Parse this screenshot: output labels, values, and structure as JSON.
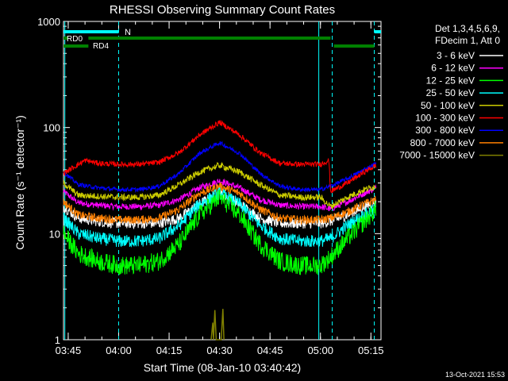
{
  "chart_data": {
    "type": "line",
    "title": "RHESSI Observing Summary Count Rates",
    "xlabel": "Start Time (08-Jan-10 03:40:42)",
    "ylabel": "Count Rate (s⁻¹ detector⁻¹)",
    "yscale": "log",
    "ylim": [
      1,
      1000
    ],
    "y_ticks": [
      {
        "value": 1,
        "label": "1"
      },
      {
        "value": 10,
        "label": "10"
      },
      {
        "value": 100,
        "label": "100"
      },
      {
        "value": 1000,
        "label": "1000"
      }
    ],
    "x_range_minutes": [
      3.6,
      98.0
    ],
    "x_ticks": [
      {
        "t": 5,
        "label": "03:45"
      },
      {
        "t": 20,
        "label": "04:00"
      },
      {
        "t": 35,
        "label": "04:15"
      },
      {
        "t": 50,
        "label": "04:30"
      },
      {
        "t": 65,
        "label": "04:45"
      },
      {
        "t": 80,
        "label": "05:00"
      },
      {
        "t": 95,
        "label": "05:15"
      }
    ],
    "legend_header": [
      "Det 1,3,4,5,6,9,",
      "FDecim 1, Att 0"
    ],
    "legend_position": "right",
    "series": [
      {
        "name": "3 - 6 keV",
        "color": "#ffffff",
        "points": [
          [
            3.6,
            18
          ],
          [
            8,
            14
          ],
          [
            14,
            13
          ],
          [
            20,
            12.5
          ],
          [
            26,
            12.5
          ],
          [
            32,
            12.5
          ],
          [
            38,
            14
          ],
          [
            44,
            19
          ],
          [
            50,
            24
          ],
          [
            56,
            19
          ],
          [
            62,
            14
          ],
          [
            68,
            12.5
          ],
          [
            74,
            12.5
          ],
          [
            80,
            12.5
          ],
          [
            83,
            13
          ],
          [
            88,
            15
          ],
          [
            93,
            18
          ],
          [
            96.5,
            20
          ]
        ]
      },
      {
        "name": "6 - 12 keV",
        "color": "#ff00ff",
        "points": [
          [
            3.6,
            25
          ],
          [
            8,
            19.5
          ],
          [
            14,
            18.5
          ],
          [
            20,
            18
          ],
          [
            26,
            18
          ],
          [
            32,
            18.5
          ],
          [
            38,
            21
          ],
          [
            44,
            27
          ],
          [
            50,
            31.5
          ],
          [
            56,
            27
          ],
          [
            62,
            21
          ],
          [
            68,
            18.5
          ],
          [
            74,
            18
          ],
          [
            80,
            18
          ],
          [
            83,
            17
          ],
          [
            88,
            20
          ],
          [
            93,
            24
          ],
          [
            96.5,
            27
          ]
        ]
      },
      {
        "name": "12 - 25 keV",
        "color": "#00ff00",
        "points": [
          [
            3.6,
            10
          ],
          [
            8,
            6.5
          ],
          [
            14,
            5.5
          ],
          [
            20,
            5
          ],
          [
            26,
            5
          ],
          [
            32,
            5.5
          ],
          [
            38,
            8
          ],
          [
            44,
            15
          ],
          [
            50,
            22
          ],
          [
            56,
            15
          ],
          [
            62,
            8
          ],
          [
            68,
            5.5
          ],
          [
            74,
            5
          ],
          [
            80,
            5
          ],
          [
            83,
            6
          ],
          [
            88,
            9
          ],
          [
            93,
            13
          ],
          [
            96.5,
            17
          ]
        ]
      },
      {
        "name": "25 - 50 keV",
        "color": "#00ffff",
        "points": [
          [
            3.6,
            14
          ],
          [
            8,
            10
          ],
          [
            14,
            9
          ],
          [
            20,
            8.5
          ],
          [
            26,
            8.5
          ],
          [
            32,
            9
          ],
          [
            38,
            12
          ],
          [
            44,
            19
          ],
          [
            50,
            24
          ],
          [
            56,
            19
          ],
          [
            62,
            12
          ],
          [
            68,
            9
          ],
          [
            74,
            8.5
          ],
          [
            80,
            8.5
          ],
          [
            83,
            9
          ],
          [
            88,
            12
          ],
          [
            93,
            15
          ],
          [
            96.5,
            17
          ]
        ]
      },
      {
        "name": "50 - 100 keV",
        "color": "#cccc00",
        "points": [
          [
            3.6,
            30
          ],
          [
            8,
            23
          ],
          [
            14,
            22.5
          ],
          [
            20,
            22
          ],
          [
            26,
            22
          ],
          [
            32,
            23
          ],
          [
            38,
            29
          ],
          [
            44,
            38
          ],
          [
            50,
            44
          ],
          [
            56,
            38
          ],
          [
            62,
            29
          ],
          [
            68,
            23
          ],
          [
            74,
            22
          ],
          [
            80,
            22
          ],
          [
            83,
            18
          ],
          [
            88,
            22
          ],
          [
            93,
            26
          ],
          [
            96.5,
            28
          ]
        ]
      },
      {
        "name": "100 - 300 keV",
        "color": "#ff0000",
        "points": [
          [
            3.6,
            37
          ],
          [
            10,
            49
          ],
          [
            14,
            46
          ],
          [
            20,
            45
          ],
          [
            26,
            45
          ],
          [
            32,
            47
          ],
          [
            38,
            58
          ],
          [
            44,
            85
          ],
          [
            50,
            112
          ],
          [
            56,
            85
          ],
          [
            62,
            58
          ],
          [
            68,
            46
          ],
          [
            74,
            45
          ],
          [
            80,
            45
          ],
          [
            82.5,
            49
          ],
          [
            83,
            25
          ],
          [
            88,
            30
          ],
          [
            93,
            38
          ],
          [
            96.5,
            44
          ]
        ]
      },
      {
        "name": "300 - 800 keV",
        "color": "#0000ff",
        "points": [
          [
            3.6,
            38
          ],
          [
            8,
            29
          ],
          [
            14,
            27
          ],
          [
            20,
            26
          ],
          [
            26,
            26
          ],
          [
            32,
            28
          ],
          [
            38,
            37
          ],
          [
            44,
            57
          ],
          [
            50,
            72
          ],
          [
            56,
            57
          ],
          [
            62,
            37
          ],
          [
            68,
            28
          ],
          [
            74,
            26
          ],
          [
            80,
            26
          ],
          [
            83,
            28
          ],
          [
            88,
            33
          ],
          [
            93,
            40
          ],
          [
            96.5,
            46
          ]
        ]
      },
      {
        "name": "800 - 7000 keV",
        "color": "#ff8000",
        "points": [
          [
            3.6,
            20
          ],
          [
            8,
            15
          ],
          [
            14,
            14
          ],
          [
            20,
            13.5
          ],
          [
            26,
            13.5
          ],
          [
            32,
            14
          ],
          [
            38,
            17
          ],
          [
            44,
            24
          ],
          [
            50,
            28
          ],
          [
            56,
            24
          ],
          [
            62,
            17
          ],
          [
            68,
            14
          ],
          [
            74,
            13.5
          ],
          [
            80,
            13.5
          ],
          [
            83,
            14
          ],
          [
            88,
            16
          ],
          [
            93,
            19
          ],
          [
            96.5,
            21
          ]
        ]
      },
      {
        "name": "7000 - 15000 keV",
        "color": "#808000",
        "points": [
          [
            47.5,
            1
          ],
          [
            48,
            1.45
          ],
          [
            48.2,
            1
          ],
          [
            48.6,
            1.9
          ],
          [
            49,
            1
          ],
          [
            50.5,
            1
          ],
          [
            51,
            1.95
          ],
          [
            51.3,
            1
          ]
        ]
      }
    ],
    "attenuator_bars": [
      {
        "label": "N",
        "color": "#00ffff",
        "label_color": "#00ffff",
        "segments": [
          [
            3.6,
            20
          ],
          [
            96,
            98
          ]
        ]
      },
      {
        "label": "RD0",
        "color": "#008000",
        "label_color": "#00ff00",
        "segments": [
          [
            3.6,
            5
          ],
          [
            11,
            83
          ]
        ]
      },
      {
        "label": "RD4",
        "color": "#008000",
        "label_color": "#00ff00",
        "segments": [
          [
            3.6,
            11
          ],
          [
            84,
            96
          ]
        ]
      }
    ],
    "vertical_lines": [
      {
        "t": 4,
        "color": "#00ffff",
        "style": "solid"
      },
      {
        "t": 20,
        "color": "#00ffff",
        "style": "dashed"
      },
      {
        "t": 79.5,
        "color": "#00ffff",
        "style": "solid"
      },
      {
        "t": 83.5,
        "color": "#00ffff",
        "style": "dashed"
      },
      {
        "t": 96,
        "color": "#00ffff",
        "style": "dashed"
      }
    ]
  },
  "footer": {
    "date": "13-Oct-2021 15:53"
  }
}
